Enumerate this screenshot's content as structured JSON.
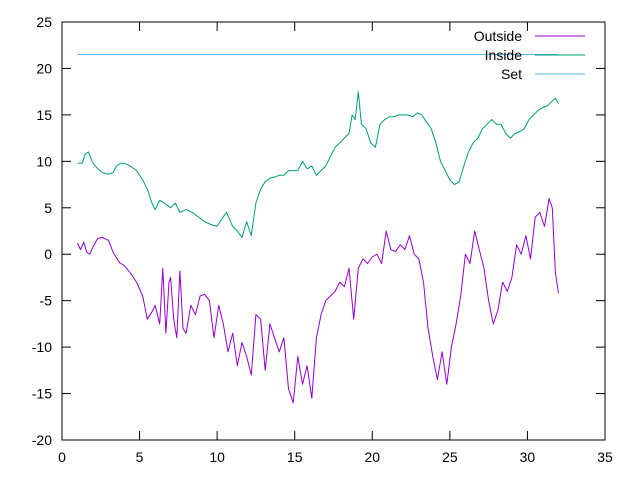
{
  "chart_data": {
    "type": "line",
    "title": "",
    "xlabel": "",
    "ylabel": "",
    "xlim": [
      0,
      35
    ],
    "ylim": [
      -20,
      25
    ],
    "xticks": [
      0,
      5,
      10,
      15,
      20,
      25,
      30,
      35
    ],
    "yticks": [
      -20,
      -15,
      -10,
      -5,
      0,
      5,
      10,
      15,
      20,
      25
    ],
    "grid": false,
    "legend_position": "top-right",
    "series": [
      {
        "name": "Outside",
        "color": "#9400d3",
        "x": [
          1.0,
          1.2,
          1.4,
          1.6,
          1.8,
          2.0,
          2.3,
          2.6,
          3.0,
          3.3,
          3.7,
          4.0,
          4.4,
          4.8,
          5.2,
          5.5,
          5.8,
          6.0,
          6.3,
          6.5,
          6.7,
          6.9,
          7.0,
          7.2,
          7.4,
          7.6,
          7.8,
          8.0,
          8.3,
          8.6,
          8.9,
          9.2,
          9.5,
          9.8,
          10.1,
          10.4,
          10.7,
          11.0,
          11.3,
          11.6,
          11.9,
          12.2,
          12.5,
          12.8,
          13.1,
          13.4,
          13.7,
          14.0,
          14.3,
          14.6,
          14.9,
          15.2,
          15.5,
          15.8,
          16.1,
          16.4,
          16.7,
          17.0,
          17.3,
          17.6,
          17.9,
          18.2,
          18.5,
          18.8,
          19.1,
          19.4,
          19.7,
          20.0,
          20.3,
          20.6,
          20.9,
          21.2,
          21.5,
          21.8,
          22.1,
          22.4,
          22.7,
          23.0,
          23.3,
          23.6,
          23.9,
          24.2,
          24.5,
          24.8,
          25.1,
          25.4,
          25.7,
          26.0,
          26.3,
          26.6,
          26.9,
          27.2,
          27.5,
          27.8,
          28.1,
          28.4,
          28.7,
          29.0,
          29.3,
          29.6,
          29.9,
          30.2,
          30.5,
          30.8,
          31.1,
          31.4,
          31.6,
          31.8,
          32.0
        ],
        "y": [
          1.2,
          0.5,
          1.3,
          0.2,
          0.0,
          0.8,
          1.7,
          1.8,
          1.5,
          0.2,
          -0.9,
          -1.2,
          -2.0,
          -3.0,
          -4.5,
          -7.0,
          -6.2,
          -5.5,
          -7.5,
          -1.5,
          -8.5,
          -3.0,
          -2.5,
          -7.0,
          -9.0,
          -1.8,
          -8.0,
          -8.5,
          -5.5,
          -6.5,
          -4.5,
          -4.3,
          -5.0,
          -9.0,
          -5.5,
          -7.5,
          -10.5,
          -8.5,
          -12.0,
          -9.5,
          -11.0,
          -13.0,
          -6.5,
          -7.0,
          -12.5,
          -7.5,
          -9.0,
          -10.5,
          -9.0,
          -14.5,
          -16.0,
          -11.0,
          -14.0,
          -12.0,
          -15.5,
          -9.0,
          -6.5,
          -5.0,
          -4.5,
          -4.0,
          -3.0,
          -3.5,
          -1.5,
          -7.0,
          -1.5,
          -0.5,
          -1.0,
          -0.3,
          0.0,
          -1.0,
          2.5,
          0.5,
          0.3,
          1.0,
          0.5,
          2.0,
          0.0,
          -0.5,
          -3.0,
          -8.0,
          -11.0,
          -13.5,
          -10.5,
          -14.0,
          -10.0,
          -7.5,
          -4.5,
          0.0,
          -1.0,
          2.5,
          0.5,
          -1.5,
          -5.0,
          -7.5,
          -6.0,
          -3.0,
          -4.0,
          -2.5,
          1.0,
          0.0,
          2.0,
          -0.5,
          4.0,
          4.5,
          3.0,
          6.0,
          5.0,
          -2.0,
          -4.2
        ]
      },
      {
        "name": "Inside",
        "color": "#009e73",
        "x": [
          1.0,
          1.3,
          1.5,
          1.7,
          2.0,
          2.3,
          2.6,
          3.0,
          3.3,
          3.5,
          3.8,
          4.0,
          4.4,
          4.8,
          5.2,
          5.5,
          5.8,
          6.0,
          6.3,
          6.6,
          7.0,
          7.3,
          7.6,
          8.0,
          8.4,
          8.8,
          9.2,
          9.6,
          10.0,
          10.3,
          10.6,
          11.0,
          11.3,
          11.6,
          11.9,
          12.2,
          12.5,
          12.8,
          13.1,
          13.4,
          13.7,
          14.0,
          14.3,
          14.6,
          14.9,
          15.2,
          15.5,
          15.8,
          16.1,
          16.4,
          16.7,
          17.0,
          17.3,
          17.6,
          17.9,
          18.2,
          18.5,
          18.7,
          18.9,
          19.1,
          19.3,
          19.6,
          19.9,
          20.2,
          20.5,
          20.8,
          21.1,
          21.4,
          21.7,
          22.0,
          22.3,
          22.6,
          22.9,
          23.2,
          23.5,
          23.8,
          24.1,
          24.4,
          24.7,
          25.0,
          25.3,
          25.6,
          25.9,
          26.2,
          26.5,
          26.8,
          27.1,
          27.4,
          27.7,
          28.0,
          28.3,
          28.6,
          28.9,
          29.2,
          29.5,
          29.8,
          30.1,
          30.4,
          30.7,
          31.0,
          31.3,
          31.6,
          31.8,
          32.0
        ],
        "y": [
          9.8,
          9.8,
          10.8,
          11.0,
          9.8,
          9.2,
          8.8,
          8.6,
          8.8,
          9.5,
          9.8,
          9.8,
          9.5,
          9.0,
          8.0,
          7.0,
          5.5,
          4.8,
          5.8,
          5.5,
          5.0,
          5.5,
          4.5,
          4.8,
          4.5,
          4.0,
          3.5,
          3.2,
          3.0,
          3.8,
          4.5,
          3.0,
          2.5,
          1.8,
          3.5,
          2.0,
          5.5,
          7.0,
          7.8,
          8.2,
          8.3,
          8.5,
          8.5,
          9.0,
          9.0,
          9.0,
          10.0,
          9.2,
          9.5,
          8.5,
          9.0,
          9.5,
          10.5,
          11.5,
          12.0,
          12.5,
          13.0,
          15.0,
          14.5,
          17.5,
          14.0,
          13.5,
          12.0,
          11.5,
          14.0,
          14.5,
          14.8,
          14.8,
          15.0,
          15.0,
          15.0,
          14.8,
          15.2,
          15.0,
          14.2,
          13.5,
          12.0,
          10.0,
          9.0,
          8.0,
          7.5,
          7.8,
          9.5,
          11.0,
          12.0,
          12.5,
          13.5,
          14.0,
          14.5,
          14.0,
          14.0,
          13.0,
          12.5,
          13.0,
          13.2,
          13.5,
          14.5,
          15.0,
          15.5,
          15.8,
          16.0,
          16.5,
          16.8,
          16.2
        ]
      },
      {
        "name": "Set",
        "color": "#56b4e9",
        "x": [
          1.0,
          32.0
        ],
        "y": [
          21.5,
          21.5
        ]
      }
    ]
  }
}
